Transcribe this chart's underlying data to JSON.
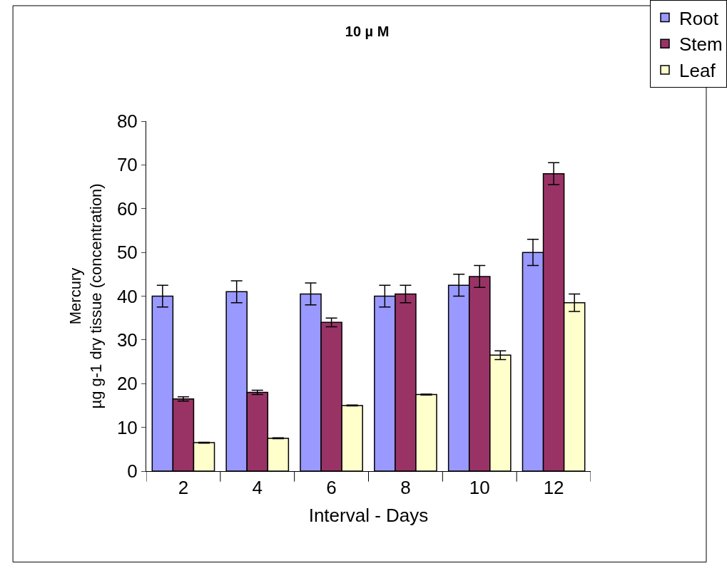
{
  "chart_data": {
    "type": "bar",
    "title": "10 µ M",
    "xlabel": "Interval - Days",
    "ylabel": "Mercury\nµg g-1 dry tissue (concentration)",
    "categories": [
      "2",
      "4",
      "6",
      "8",
      "10",
      "12"
    ],
    "series": [
      {
        "name": "Root",
        "color": "#9999ff",
        "values": [
          40,
          41,
          40.5,
          40,
          42.5,
          50
        ],
        "errors": [
          2.5,
          2.5,
          2.5,
          2.5,
          2.5,
          3
        ]
      },
      {
        "name": "Stem",
        "color": "#993366",
        "values": [
          16.5,
          18,
          34,
          40.5,
          44.5,
          68
        ],
        "errors": [
          0.5,
          0.5,
          1,
          2,
          2.5,
          2.5
        ]
      },
      {
        "name": "Leaf",
        "color": "#ffffcc",
        "values": [
          6.5,
          7.5,
          15,
          17.5,
          26.5,
          38.5
        ],
        "errors": [
          0.1,
          0.1,
          0.1,
          0.1,
          1,
          2
        ]
      }
    ],
    "ylim": [
      0,
      80
    ],
    "yticks": [
      0,
      10,
      20,
      30,
      40,
      50,
      60,
      70,
      80
    ],
    "grid": false,
    "legend": "top right"
  }
}
